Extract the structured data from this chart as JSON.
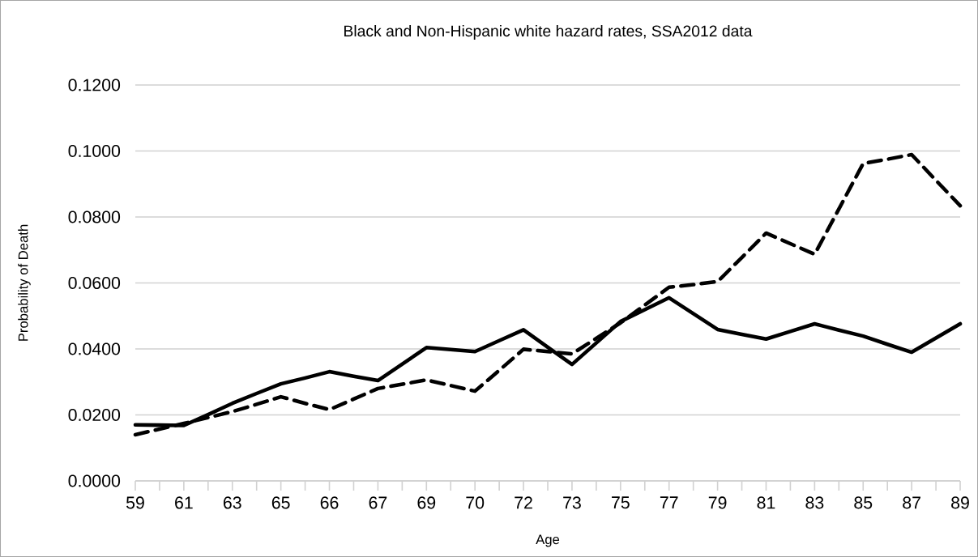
{
  "chart_data": {
    "type": "line",
    "title": "Black and Non-Hispanic white hazard rates, SSA2012 data",
    "xlabel": "Age",
    "ylabel": "Probability of Death",
    "categories": [
      "59",
      null,
      "61",
      null,
      "63",
      null,
      "65",
      null,
      "66",
      null,
      "67",
      null,
      "69",
      null,
      "70",
      null,
      "72",
      null,
      "73",
      null,
      "75",
      null,
      "77",
      null,
      "79",
      null,
      "81",
      null,
      "83",
      null,
      "85",
      null,
      "87",
      null,
      "89"
    ],
    "series": [
      {
        "color": "#000000",
        "line_style": "solid",
        "values": [
          0.017,
          0.0169,
          0.0168,
          0.0201,
          0.0235,
          0.0265,
          0.0294,
          0.0312,
          0.0331,
          0.0317,
          0.0304,
          0.0354,
          0.0404,
          0.0398,
          0.0392,
          0.0425,
          0.0458,
          0.0405,
          0.0353,
          0.0418,
          0.0483,
          0.0519,
          0.0555,
          0.0507,
          0.0459,
          0.0444,
          0.043,
          0.0453,
          0.0476,
          0.0457,
          0.0439,
          0.0414,
          0.039,
          0.0433,
          0.0476
        ]
      },
      {
        "color": "#000000",
        "line_style": "dashed",
        "values": [
          0.014,
          0.0157,
          0.0174,
          0.0192,
          0.021,
          0.0232,
          0.0255,
          0.0235,
          0.0216,
          0.0248,
          0.028,
          0.0293,
          0.0306,
          0.0289,
          0.0272,
          0.0335,
          0.0399,
          0.0392,
          0.0385,
          0.0432,
          0.0479,
          0.0533,
          0.0587,
          0.0595,
          0.0604,
          0.0677,
          0.0751,
          0.0719,
          0.0687,
          0.0824,
          0.0962,
          0.0975,
          0.0989,
          0.0911,
          0.0834
        ]
      }
    ],
    "ylim": [
      0,
      0.12
    ],
    "yticks": [
      {
        "value": 0,
        "label": "0.0000"
      },
      {
        "value": 0.02,
        "label": "0.0200"
      },
      {
        "value": 0.04,
        "label": "0.0400"
      },
      {
        "value": 0.06,
        "label": "0.0600"
      },
      {
        "value": 0.08,
        "label": "0.0800"
      },
      {
        "value": 0.1,
        "label": "0.1000"
      },
      {
        "value": 0.12,
        "label": "0.1200"
      }
    ],
    "grid": "y",
    "legend": false,
    "marker": "none"
  }
}
